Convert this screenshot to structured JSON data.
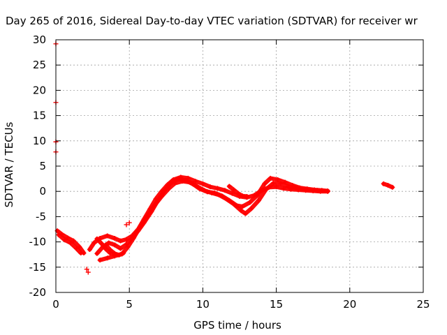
{
  "colors": {
    "series": "#ff0000",
    "grid": "#a0a0a0",
    "axis": "#000000",
    "background": "#ffffff"
  },
  "chart_data": {
    "type": "scatter",
    "title": "Day 265 of 2016, Sidereal Day-to-day VTEC variation (SDTVAR) for receiver wr",
    "xlabel": "GPS time / hours",
    "ylabel": "SDTVAR / TECUs",
    "xlim": [
      0,
      25
    ],
    "ylim": [
      -20,
      30
    ],
    "xticks": [
      0,
      5,
      10,
      15,
      20,
      25
    ],
    "yticks": [
      -20,
      -15,
      -10,
      -5,
      0,
      5,
      10,
      15,
      20,
      25,
      30
    ],
    "xtick_labels": [
      "0",
      "5",
      "10",
      "15",
      "20",
      "25"
    ],
    "ytick_labels": [
      "-20",
      "-15",
      "-10",
      "-5",
      "0",
      "5",
      "10",
      "15",
      "20",
      "25",
      "30"
    ],
    "grid": true,
    "legend": "none",
    "series": [
      {
        "name": "SDTVAR",
        "color": "#ff0000",
        "marker": "plus",
        "tracks": [
          [
            [
              0.1,
              -7.8
            ],
            [
              0.4,
              -8.5
            ],
            [
              0.8,
              -9.2
            ],
            [
              1.2,
              -9.8
            ],
            [
              1.6,
              -11.0
            ],
            [
              1.9,
              -12.2
            ]
          ],
          [
            [
              0.2,
              -8.6
            ],
            [
              0.6,
              -9.6
            ],
            [
              1.0,
              -10.2
            ],
            [
              1.4,
              -11.3
            ],
            [
              1.7,
              -12.2
            ]
          ],
          [
            [
              2.3,
              -11.5
            ],
            [
              2.6,
              -10.2
            ],
            [
              3.0,
              -9.3
            ],
            [
              3.5,
              -8.8
            ],
            [
              4.0,
              -9.3
            ],
            [
              4.4,
              -9.8
            ],
            [
              4.8,
              -9.5
            ],
            [
              5.2,
              -8.8
            ],
            [
              5.6,
              -7.5
            ],
            [
              6.0,
              -5.5
            ],
            [
              6.4,
              -3.5
            ],
            [
              6.8,
              -1.5
            ],
            [
              7.2,
              0.0
            ],
            [
              7.6,
              1.3
            ],
            [
              8.0,
              2.3
            ],
            [
              8.5,
              2.8
            ],
            [
              9.0,
              2.6
            ],
            [
              9.5,
              2.0
            ],
            [
              10.0,
              1.5
            ],
            [
              10.5,
              0.9
            ],
            [
              11.0,
              0.6
            ],
            [
              11.5,
              0.2
            ],
            [
              12.0,
              -0.4
            ],
            [
              12.5,
              -1.0
            ],
            [
              13.0,
              -1.2
            ],
            [
              13.5,
              -0.8
            ],
            [
              14.0,
              0.2
            ],
            [
              14.5,
              0.8
            ],
            [
              15.0,
              0.9
            ],
            [
              15.5,
              0.6
            ],
            [
              16.0,
              0.4
            ],
            [
              16.5,
              0.3
            ],
            [
              17.0,
              0.2
            ],
            [
              17.5,
              0.1
            ],
            [
              18.0,
              0.0
            ],
            [
              18.5,
              0.0
            ]
          ],
          [
            [
              2.8,
              -12.3
            ],
            [
              3.2,
              -11.0
            ],
            [
              3.6,
              -10.2
            ],
            [
              4.0,
              -10.6
            ],
            [
              4.4,
              -11.3
            ],
            [
              4.8,
              -10.5
            ],
            [
              5.2,
              -9.2
            ],
            [
              5.6,
              -7.8
            ],
            [
              6.0,
              -6.2
            ],
            [
              6.5,
              -4.0
            ],
            [
              7.0,
              -1.5
            ],
            [
              7.4,
              0.2
            ],
            [
              7.8,
              1.6
            ],
            [
              8.3,
              2.4
            ],
            [
              8.8,
              2.2
            ],
            [
              9.3,
              1.5
            ],
            [
              9.8,
              0.5
            ],
            [
              10.3,
              -0.1
            ],
            [
              10.8,
              -0.3
            ],
            [
              11.3,
              -0.9
            ],
            [
              11.8,
              -1.8
            ],
            [
              12.3,
              -2.8
            ],
            [
              12.7,
              -3.0
            ],
            [
              13.2,
              -2.2
            ],
            [
              13.7,
              -0.8
            ],
            [
              14.2,
              1.5
            ],
            [
              14.6,
              2.6
            ],
            [
              15.1,
              2.3
            ],
            [
              15.6,
              1.8
            ],
            [
              16.1,
              1.2
            ],
            [
              16.6,
              0.7
            ],
            [
              17.1,
              0.5
            ],
            [
              17.6,
              0.3
            ],
            [
              18.1,
              0.2
            ],
            [
              18.5,
              0.1
            ]
          ],
          [
            [
              3.0,
              -13.6
            ],
            [
              3.5,
              -13.2
            ],
            [
              4.0,
              -12.8
            ],
            [
              4.5,
              -12.4
            ],
            [
              4.9,
              -11.0
            ],
            [
              5.3,
              -9.2
            ],
            [
              5.7,
              -7.2
            ],
            [
              6.2,
              -5.0
            ],
            [
              6.7,
              -2.8
            ],
            [
              7.2,
              -1.0
            ],
            [
              7.7,
              0.6
            ],
            [
              8.1,
              1.6
            ],
            [
              8.6,
              2.0
            ],
            [
              9.1,
              1.8
            ],
            [
              9.6,
              1.0
            ],
            [
              10.1,
              0.2
            ],
            [
              10.6,
              -0.3
            ],
            [
              11.1,
              -0.7
            ],
            [
              11.6,
              -1.5
            ],
            [
              12.1,
              -2.5
            ],
            [
              12.6,
              -3.8
            ],
            [
              12.9,
              -4.4
            ],
            [
              13.3,
              -3.4
            ],
            [
              13.8,
              -1.8
            ],
            [
              14.3,
              0.4
            ],
            [
              14.8,
              1.6
            ],
            [
              15.3,
              1.5
            ],
            [
              15.8,
              1.0
            ],
            [
              16.3,
              0.7
            ],
            [
              16.8,
              0.5
            ],
            [
              17.3,
              0.3
            ],
            [
              17.8,
              0.2
            ],
            [
              18.2,
              0.1
            ],
            [
              18.5,
              0.0
            ]
          ],
          [
            [
              3.4,
              -10.6
            ],
            [
              3.7,
              -11.6
            ],
            [
              4.0,
              -12.3
            ],
            [
              4.3,
              -12.6
            ],
            [
              4.6,
              -12.2
            ]
          ],
          [
            [
              2.8,
              -9.4
            ],
            [
              3.1,
              -10.3
            ],
            [
              3.4,
              -11.4
            ],
            [
              3.7,
              -12.2
            ],
            [
              4.0,
              -12.4
            ]
          ],
          [
            [
              11.8,
              1.0
            ],
            [
              12.1,
              0.3
            ],
            [
              12.4,
              -0.4
            ],
            [
              12.7,
              -0.9
            ],
            [
              13.0,
              -1.0
            ]
          ],
          [
            [
              22.3,
              1.5
            ],
            [
              22.6,
              1.2
            ],
            [
              22.9,
              0.8
            ]
          ]
        ],
        "points": [
          [
            2.1,
            -15.4
          ],
          [
            2.2,
            -16.0
          ],
          [
            0.0,
            29.2
          ],
          [
            0.0,
            17.6
          ],
          [
            0.0,
            9.8
          ],
          [
            0.0,
            7.8
          ],
          [
            4.8,
            -6.6
          ],
          [
            5.0,
            -6.2
          ]
        ]
      }
    ]
  }
}
